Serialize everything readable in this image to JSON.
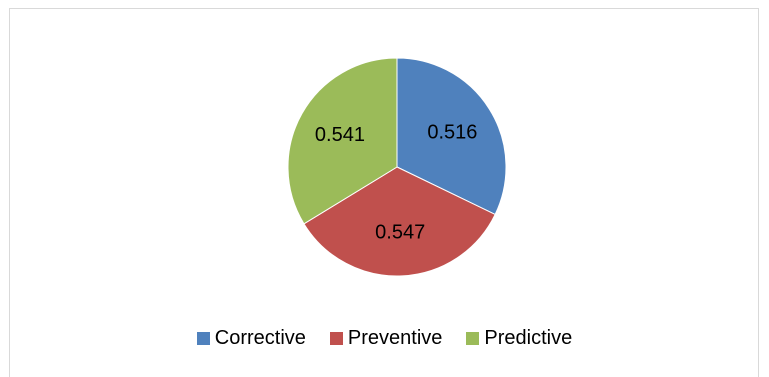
{
  "chart_data": {
    "type": "pie",
    "categories": [
      "Corrective",
      "Preventive",
      "Predictive"
    ],
    "values": [
      0.516,
      0.547,
      0.541
    ],
    "labels": [
      "0.516",
      "0.547",
      "0.541"
    ],
    "colors": [
      "#4f81bd",
      "#c0504d",
      "#9bbb59"
    ],
    "start_angle_deg": 0,
    "direction": "clockwise",
    "legend_position": "bottom"
  },
  "legend": {
    "items": [
      {
        "label": "Corrective",
        "color": "#4f81bd"
      },
      {
        "label": "Preventive",
        "color": "#c0504d"
      },
      {
        "label": "Predictive",
        "color": "#9bbb59"
      }
    ]
  }
}
